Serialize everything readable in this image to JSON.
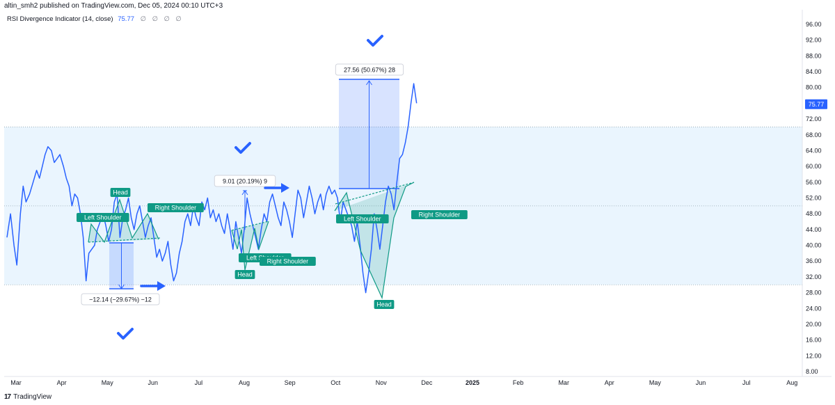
{
  "header": {
    "publisher_line": "altin_smh2 published on TradingView.com, Dec 05, 2024 00:10 UTC+3",
    "indicator_name": "RSI Divergence Indicator (14, close)",
    "indicator_value": "75.77",
    "indicator_placeholders": "∅ ∅ ∅ ∅"
  },
  "footer": {
    "brand_text": "TradingView",
    "logo_glyph": "17"
  },
  "colors": {
    "line": "#2962ff",
    "band": "#e3f2fd",
    "label_green": "#0f9a85",
    "measure_blue": "#2962ff",
    "last_value_bg": "#2962ff"
  },
  "chart_data": {
    "type": "line",
    "x_labels": [
      "Mar",
      "Apr",
      "May",
      "Jun",
      "Jul",
      "Aug",
      "Sep",
      "Oct",
      "Nov",
      "Dec",
      "2025",
      "Feb",
      "Mar",
      "Apr",
      "May",
      "Jun",
      "Jul",
      "Aug"
    ],
    "y_ticks": [
      "96.00",
      "92.00",
      "88.00",
      "84.00",
      "80.00",
      "76.00",
      "72.00",
      "68.00",
      "64.00",
      "60.00",
      "56.00",
      "52.00",
      "48.00",
      "44.00",
      "40.00",
      "36.00",
      "32.00",
      "28.00",
      "24.00",
      "20.00",
      "16.00",
      "12.00",
      "8.00"
    ],
    "ylim": [
      8,
      96
    ],
    "band": [
      30,
      70
    ],
    "midline": 50,
    "last_value": "75.77",
    "series": [
      {
        "values": [
          [
            0.0,
            42
          ],
          [
            0.5,
            48
          ],
          [
            1.0,
            40
          ],
          [
            1.4,
            35
          ],
          [
            1.9,
            48
          ],
          [
            2.3,
            55
          ],
          [
            2.7,
            51
          ],
          [
            3.2,
            53
          ],
          [
            3.7,
            56
          ],
          [
            4.2,
            59
          ],
          [
            4.6,
            57
          ],
          [
            5.0,
            60
          ],
          [
            5.4,
            63
          ],
          [
            5.8,
            65
          ],
          [
            6.3,
            64
          ],
          [
            6.7,
            61
          ],
          [
            7.1,
            62
          ],
          [
            7.5,
            63
          ],
          [
            8.0,
            60
          ],
          [
            8.4,
            57
          ],
          [
            8.8,
            55
          ],
          [
            9.2,
            50
          ],
          [
            9.6,
            53
          ],
          [
            10.0,
            52
          ],
          [
            10.4,
            48
          ],
          [
            10.8,
            42
          ],
          [
            11.2,
            31
          ],
          [
            11.6,
            38
          ],
          [
            12.0,
            39
          ],
          [
            12.4,
            40
          ],
          [
            12.8,
            44
          ],
          [
            13.2,
            46
          ],
          [
            13.6,
            48
          ],
          [
            14.0,
            45
          ],
          [
            14.4,
            41
          ],
          [
            14.8,
            44
          ],
          [
            15.2,
            51
          ],
          [
            15.6,
            53
          ],
          [
            16.0,
            42
          ],
          [
            16.4,
            47
          ],
          [
            16.8,
            49
          ],
          [
            17.2,
            52
          ],
          [
            17.6,
            47
          ],
          [
            18.0,
            44
          ],
          [
            18.4,
            48
          ],
          [
            18.8,
            50
          ],
          [
            19.2,
            46
          ],
          [
            19.6,
            42
          ],
          [
            20.0,
            45
          ],
          [
            20.4,
            47
          ],
          [
            20.8,
            42
          ],
          [
            21.2,
            37
          ],
          [
            21.6,
            39
          ],
          [
            22.0,
            36
          ],
          [
            22.4,
            38
          ],
          [
            22.8,
            41
          ],
          [
            23.2,
            35
          ],
          [
            23.6,
            31
          ],
          [
            24.0,
            33
          ],
          [
            24.4,
            38
          ],
          [
            24.8,
            41
          ],
          [
            25.2,
            46
          ],
          [
            25.6,
            48
          ],
          [
            26.0,
            45
          ],
          [
            26.4,
            50
          ],
          [
            26.8,
            47
          ],
          [
            27.2,
            45
          ],
          [
            27.6,
            51
          ],
          [
            28.0,
            49
          ],
          [
            28.4,
            52
          ],
          [
            28.8,
            47
          ],
          [
            29.2,
            49
          ],
          [
            29.6,
            46
          ],
          [
            30.0,
            48
          ],
          [
            30.4,
            45
          ],
          [
            30.8,
            43
          ],
          [
            31.2,
            48
          ],
          [
            31.6,
            44
          ],
          [
            32.0,
            39
          ],
          [
            32.4,
            46
          ],
          [
            32.8,
            42
          ],
          [
            33.2,
            38
          ],
          [
            33.6,
            44
          ],
          [
            34.0,
            52
          ],
          [
            34.4,
            48
          ],
          [
            34.8,
            45
          ],
          [
            35.2,
            42
          ],
          [
            35.6,
            39
          ],
          [
            36.0,
            44
          ],
          [
            36.4,
            48
          ],
          [
            36.8,
            46
          ],
          [
            37.2,
            51
          ],
          [
            37.6,
            53
          ],
          [
            38.0,
            50
          ],
          [
            38.4,
            47
          ],
          [
            38.8,
            45
          ],
          [
            39.2,
            51
          ],
          [
            39.6,
            49
          ],
          [
            40.0,
            46
          ],
          [
            40.4,
            42
          ],
          [
            40.8,
            48
          ],
          [
            41.2,
            54
          ],
          [
            41.6,
            52
          ],
          [
            42.0,
            47
          ],
          [
            42.4,
            51
          ],
          [
            42.8,
            55
          ],
          [
            43.2,
            52
          ],
          [
            43.6,
            48
          ],
          [
            44.0,
            51
          ],
          [
            44.4,
            53
          ],
          [
            44.8,
            49
          ],
          [
            45.2,
            53
          ],
          [
            45.6,
            55
          ],
          [
            46.0,
            53
          ],
          [
            46.4,
            54
          ],
          [
            46.8,
            52
          ],
          [
            47.2,
            46
          ],
          [
            47.6,
            51
          ],
          [
            48.0,
            49
          ],
          [
            48.4,
            47
          ],
          [
            48.8,
            45
          ],
          [
            49.2,
            41
          ],
          [
            49.6,
            46
          ],
          [
            50.0,
            40
          ],
          [
            50.4,
            33
          ],
          [
            50.8,
            28
          ],
          [
            51.2,
            33
          ],
          [
            51.6,
            39
          ],
          [
            52.0,
            48
          ],
          [
            52.4,
            44
          ],
          [
            52.8,
            39
          ],
          [
            53.2,
            45
          ],
          [
            53.6,
            51
          ],
          [
            54.0,
            55
          ],
          [
            54.4,
            53
          ],
          [
            54.8,
            49
          ],
          [
            55.2,
            56
          ],
          [
            55.6,
            62
          ],
          [
            56.0,
            63
          ],
          [
            56.4,
            66
          ],
          [
            56.8,
            70
          ],
          [
            57.2,
            76
          ],
          [
            57.6,
            81
          ],
          [
            58.0,
            76
          ]
        ]
      }
    ],
    "patterns": [
      {
        "labels": [
          "Left Shoulder",
          "Head",
          "Right Shoulder"
        ],
        "measure_label": "−12.14 (−29.67%) −12",
        "measure_from": 41.5,
        "measure_to": 29.4
      },
      {
        "labels": [
          "Left Shoulder",
          "Head",
          "Right Shoulder"
        ],
        "measure_label": "9.01 (20.19%) 9",
        "measure_from": 44.6,
        "measure_to": 53.6
      },
      {
        "labels": [
          "Left Shoulder",
          "Head",
          "Right Shoulder"
        ],
        "measure_label": "27.56 (50.67%) 28",
        "measure_from": 54.6,
        "measure_to": 82.2
      }
    ]
  }
}
